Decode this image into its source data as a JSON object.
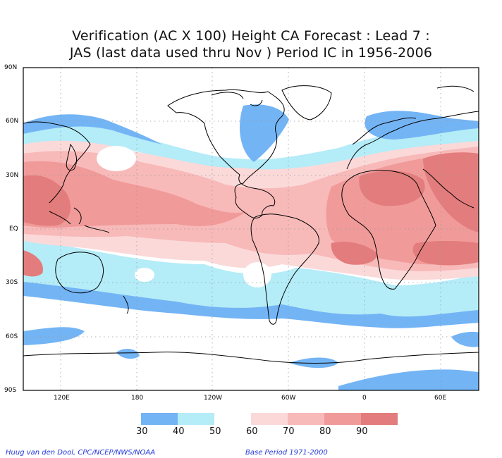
{
  "title": {
    "line1": "Verification (AC X 100) Height CA Forecast : Lead 7 :",
    "line2": "JAS (last data used thru Nov ) Period IC in 1956-2006"
  },
  "map": {
    "lat_labels": [
      "90N",
      "60N",
      "30N",
      "EQ",
      "30S",
      "60S",
      "90S"
    ],
    "lon_labels": [
      "120E",
      "180",
      "120W",
      "60W",
      "0",
      "60E"
    ],
    "colors": {
      "c30": "#73b4f5",
      "c40": "#b4ecf8",
      "c50": "#ffffff",
      "c60": "#fbd9d9",
      "c70": "#f8b9b9",
      "c80": "#f19a9a",
      "c90": "#e37c7c",
      "c100": "#dd6363",
      "coast": "#000000"
    }
  },
  "colorbar": {
    "labels": [
      "30",
      "40",
      "50",
      "60",
      "70",
      "80",
      "90"
    ]
  },
  "credits": {
    "left": "Huug van den Dool, CPC/NCEP/NWS/NOAA",
    "right": "Base Period 1971-2000"
  }
}
